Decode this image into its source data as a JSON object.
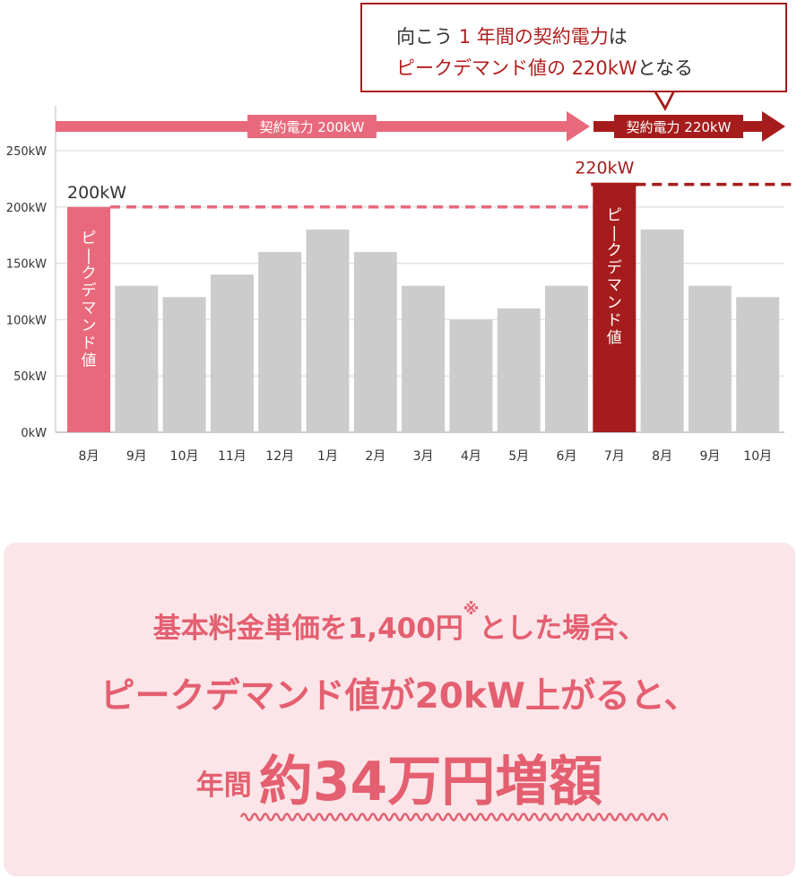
{
  "callout": {
    "line1_pre": "向こう ",
    "line1_hl": "1 年間の契約電力",
    "line1_post": "は",
    "line2_hl": "ピークデマンド値の 220kW",
    "line2_post": "となる"
  },
  "contract_bars": [
    {
      "label": "契約電力 200kW",
      "value": 200,
      "from_index": 0,
      "to_index": 10
    },
    {
      "label": "契約電力 220kW",
      "value": 220,
      "from_index": 11,
      "to_index": 14
    }
  ],
  "chart_data": {
    "type": "bar",
    "categories": [
      "8月",
      "9月",
      "10月",
      "11月",
      "12月",
      "1月",
      "2月",
      "3月",
      "4月",
      "5月",
      "6月",
      "7月",
      "8月",
      "9月",
      "10月"
    ],
    "values": [
      200,
      130,
      120,
      140,
      160,
      180,
      160,
      130,
      100,
      110,
      130,
      220,
      180,
      130,
      120
    ],
    "y_ticks": [
      "0kW",
      "50kW",
      "100kW",
      "150kW",
      "200kW",
      "250kW"
    ],
    "ylim": [
      0,
      250
    ],
    "grid": true,
    "highlights": [
      {
        "index": 0,
        "color": "#e8697b",
        "bar_text": "ピークデマンド値",
        "peak_label": "200kW"
      },
      {
        "index": 11,
        "color": "#a61c1c",
        "bar_text": "ピークデマンド値",
        "peak_label": "220kW"
      }
    ],
    "colors": {
      "normal": "#cccccc",
      "peak1": "#e8697b",
      "peak2": "#a61c1c",
      "arrow1": "#e8697b",
      "arrow2": "#a61c1c"
    }
  },
  "summary": {
    "line1": "基本料金単価を1,400円",
    "line1_note": "※",
    "line1_post": "とした場合、",
    "line2": "ピークデマンド値が20kW上がると、",
    "line3_pre": "年間",
    "line3_big": "約34万円増額"
  }
}
